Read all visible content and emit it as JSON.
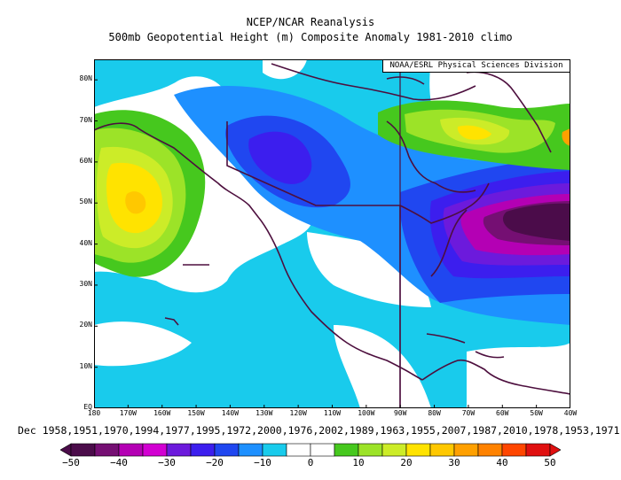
{
  "header": {
    "line1": "NCEP/NCAR Reanalysis",
    "line2": "500mb Geopotential Height (m) Composite Anomaly 1981-2010 climo"
  },
  "credit": "NOAA/ESRL Physical Sciences Division",
  "map": {
    "projection": "cylindrical",
    "lon_range": [
      -180,
      -40
    ],
    "lat_range": [
      0,
      85
    ],
    "lat_labels": [
      "80N",
      "70N",
      "60N",
      "50N",
      "40N",
      "30N",
      "20N",
      "10N",
      "EQ"
    ],
    "lon_labels": [
      "180",
      "170W",
      "160W",
      "150W",
      "140W",
      "130W",
      "120W",
      "110W",
      "100W",
      "90W",
      "80W",
      "70W",
      "60W",
      "50W",
      "40W"
    ],
    "anomaly_features": [
      {
        "name": "Gulf of Alaska ridge (positive)",
        "lon": -167,
        "lat": 50,
        "peak": 35
      },
      {
        "name": "Western Canada trough (negative)",
        "lon": -128,
        "lat": 60,
        "peak": -25
      },
      {
        "name": "Eastern US / Atlantic trough (negative)",
        "lon": -52,
        "lat": 46,
        "peak": -45
      },
      {
        "name": "Baffin Island ridge (positive)",
        "lon": -72,
        "lat": 69,
        "peak": 20
      }
    ],
    "colors": {
      "boundary": "#4d0f3e",
      "frame": "#000000"
    }
  },
  "composite_years": "Dec 1958,1951,1970,1994,1977,1995,1972,2000,1976,2002,1989,1963,1955,2007,1987,2010,1978,1953,1971,",
  "colorbar": {
    "labels": [
      "-50",
      "-40",
      "-30",
      "-20",
      "-10",
      "0",
      "10",
      "20",
      "30",
      "40",
      "50"
    ],
    "colors": [
      "#4b0c4a",
      "#750f73",
      "#b400b4",
      "#d200d2",
      "#6c1adc",
      "#3c1eee",
      "#2047f0",
      "#1e90ff",
      "#19cbec",
      "#ffffff",
      "#ffffff",
      "#46c81e",
      "#9ce328",
      "#ccec28",
      "#ffe300",
      "#ffc800",
      "#ffa000",
      "#ff8200",
      "#ff4600",
      "#e01010"
    ]
  }
}
